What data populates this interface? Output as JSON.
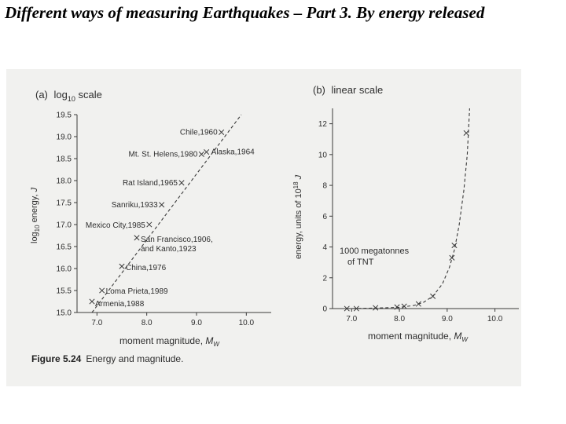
{
  "slide": {
    "title": "Different ways of measuring Earthquakes – Part 3. By energy released"
  },
  "caption": {
    "label": "Figure 5.24",
    "text": "Energy and magnitude."
  },
  "chart_data": [
    {
      "type": "scatter",
      "panel_label": "(a)",
      "title_main": "log",
      "title_sub": "10",
      "title_rest": " scale",
      "xlabel_main": "moment magnitude, ",
      "xlabel_sym": "M",
      "xlabel_sub": "W",
      "ylabel_main": "log",
      "ylabel_sub": "10",
      "ylabel_rest": " energy, ",
      "ylabel_unit": "J",
      "xlim": [
        6.6,
        10.5
      ],
      "ylim": [
        15.0,
        19.5
      ],
      "xticks": [
        "7.0",
        "8.0",
        "9.0",
        "10.0"
      ],
      "xtick_values": [
        7.0,
        8.0,
        9.0,
        10.0
      ],
      "yticks": [
        "15.0",
        "15.5",
        "16.0",
        "16.5",
        "17.0",
        "17.5",
        "18.0",
        "18.5",
        "19.0",
        "19.5"
      ],
      "ytick_values": [
        15.0,
        15.5,
        16.0,
        16.5,
        17.0,
        17.5,
        18.0,
        18.5,
        19.0,
        19.5
      ],
      "trend_line": {
        "x": [
          6.9,
          9.9
        ],
        "y": [
          15.0,
          19.5
        ],
        "style": "dashed"
      },
      "points": [
        {
          "label": "Armenia,1988",
          "x": 6.9,
          "y": 15.25
        },
        {
          "label": "Loma Prieta,1989",
          "x": 7.1,
          "y": 15.5
        },
        {
          "label": "China,1976",
          "x": 7.5,
          "y": 16.05
        },
        {
          "label": "San Francisco,1906,",
          "label2": "and Kanto,1923",
          "x": 7.8,
          "y": 16.7
        },
        {
          "label": "Mexico City,1985",
          "x": 8.05,
          "y": 17.0
        },
        {
          "label": "Sanriku,1933",
          "x": 8.3,
          "y": 17.45
        },
        {
          "label": "Rat Island,1965",
          "x": 8.7,
          "y": 17.95
        },
        {
          "label": "Mt. St. Helens,1980",
          "x": 9.1,
          "y": 18.6
        },
        {
          "label": "Alaska,1964",
          "x": 9.2,
          "y": 18.65
        },
        {
          "label": "Chile,1960",
          "x": 9.5,
          "y": 19.1
        }
      ],
      "grid": false
    },
    {
      "type": "scatter",
      "panel_label": "(b)",
      "title": "linear scale",
      "xlabel_main": "moment magnitude, ",
      "xlabel_sym": "M",
      "xlabel_sub": "W",
      "ylabel_main": "energy, units of 10",
      "ylabel_sup": "18",
      "ylabel_unit": " J",
      "xlim": [
        6.6,
        10.5
      ],
      "ylim": [
        0,
        13
      ],
      "xticks": [
        "7.0",
        "8.0",
        "9.0",
        "10.0"
      ],
      "xtick_values": [
        7.0,
        8.0,
        9.0,
        10.0
      ],
      "yticks": [
        "0",
        "2",
        "4",
        "6",
        "8",
        "10",
        "12"
      ],
      "ytick_values": [
        0,
        2,
        4,
        6,
        8,
        10,
        12
      ],
      "annotation": [
        "1000 megatonnes",
        "of TNT"
      ],
      "points": [
        {
          "x": 6.9,
          "y": 0.0
        },
        {
          "x": 7.1,
          "y": 0.0
        },
        {
          "x": 7.5,
          "y": 0.05
        },
        {
          "x": 7.95,
          "y": 0.1
        },
        {
          "x": 8.1,
          "y": 0.15
        },
        {
          "x": 8.4,
          "y": 0.3
        },
        {
          "x": 8.7,
          "y": 0.8
        },
        {
          "x": 9.1,
          "y": 3.3
        },
        {
          "x": 9.15,
          "y": 4.1
        },
        {
          "x": 9.4,
          "y": 11.4
        }
      ],
      "curve": {
        "x": [
          6.9,
          7.5,
          8.0,
          8.3,
          8.5,
          8.7,
          8.9,
          9.05,
          9.15,
          9.25,
          9.35,
          9.42,
          9.47
        ],
        "y": [
          0.0,
          0.03,
          0.08,
          0.2,
          0.4,
          0.8,
          1.6,
          2.7,
          3.8,
          5.4,
          7.7,
          10.0,
          13.0
        ],
        "style": "dashed"
      },
      "grid": false
    }
  ]
}
